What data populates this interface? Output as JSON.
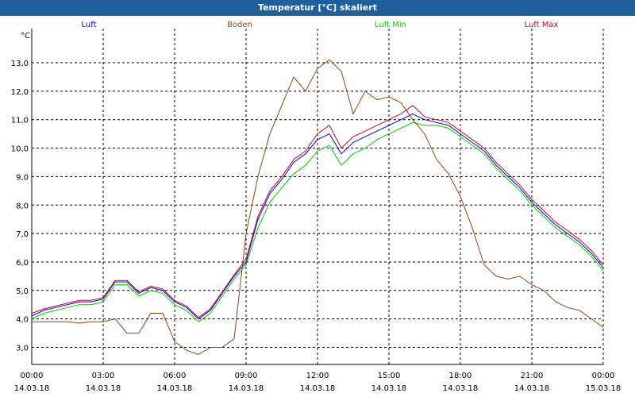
{
  "window": {
    "title": "Temperatur [°C] skaliert"
  },
  "chart_data": {
    "type": "line",
    "title": "Temperatur [°C] skaliert",
    "ylabel": "°C",
    "ylim": [
      2.4,
      14.2
    ],
    "yticks": [
      3.0,
      4.0,
      5.0,
      6.0,
      7.0,
      8.0,
      9.0,
      10.0,
      11.0,
      12.0,
      13.0
    ],
    "ytick_labels": [
      "3,0",
      "4,0",
      "5,0",
      "6,0",
      "7,0",
      "8,0",
      "9,0",
      "10,0",
      "11,0",
      "12,0",
      "13,0"
    ],
    "xlim": [
      0,
      24
    ],
    "xticks": [
      0,
      3,
      6,
      9,
      12,
      15,
      18,
      21,
      24
    ],
    "xtick_time_labels": [
      "00:00",
      "03:00",
      "06:00",
      "09:00",
      "12:00",
      "15:00",
      "18:00",
      "21:00",
      "00:00"
    ],
    "xtick_date_labels": [
      "14.03.18",
      "14.03.18",
      "14.03.18",
      "14.03.18",
      "14.03.18",
      "14.03.18",
      "14.03.18",
      "14.03.18",
      "15.03.18"
    ],
    "grid": true,
    "legend_position": "top",
    "series": [
      {
        "name": "Luft",
        "color": "#0000cc",
        "x": [
          0,
          0.5,
          1,
          1.5,
          2,
          2.5,
          3,
          3.5,
          4,
          4.5,
          5,
          5.5,
          6,
          6.5,
          7,
          7.5,
          8,
          8.5,
          9,
          9.5,
          10,
          10.5,
          11,
          11.5,
          12,
          12.5,
          13,
          13.5,
          14,
          14.5,
          15,
          15.5,
          16,
          16.5,
          17,
          17.5,
          18,
          18.5,
          19,
          19.5,
          20,
          20.5,
          21,
          21.5,
          22,
          22.5,
          23,
          23.5,
          24
        ],
        "y": [
          4.1,
          4.3,
          4.4,
          4.5,
          4.6,
          4.6,
          4.7,
          5.3,
          5.3,
          4.9,
          5.1,
          5.0,
          4.6,
          4.4,
          4.0,
          4.3,
          4.9,
          5.5,
          6.0,
          7.5,
          8.4,
          8.9,
          9.5,
          9.8,
          10.3,
          10.5,
          9.8,
          10.2,
          10.4,
          10.6,
          10.8,
          11.0,
          11.2,
          11.0,
          10.9,
          10.8,
          10.5,
          10.2,
          9.9,
          9.4,
          9.0,
          8.6,
          8.1,
          7.7,
          7.3,
          7.0,
          6.7,
          6.3,
          5.8
        ]
      },
      {
        "name": "Boden",
        "color": "#8b4513",
        "x": [
          0,
          0.5,
          1,
          1.5,
          2,
          2.5,
          3,
          3.5,
          4,
          4.5,
          5,
          5.5,
          6,
          6.5,
          7,
          7.5,
          8,
          8.5,
          9,
          9.5,
          10,
          10.5,
          11,
          11.5,
          12,
          12.5,
          13,
          13.5,
          14,
          14.5,
          15,
          15.5,
          16,
          16.5,
          17,
          17.5,
          18,
          18.5,
          19,
          19.5,
          20,
          20.5,
          21,
          21.5,
          22,
          22.5,
          23,
          23.5,
          24
        ],
        "y": [
          3.9,
          3.9,
          3.9,
          3.9,
          3.85,
          3.9,
          3.9,
          4.0,
          3.5,
          3.5,
          4.2,
          4.2,
          3.2,
          2.9,
          2.75,
          3.0,
          3.0,
          3.3,
          7.0,
          9.0,
          10.5,
          11.5,
          12.5,
          12.0,
          12.8,
          13.1,
          12.7,
          11.2,
          12.0,
          11.7,
          11.8,
          11.6,
          11.0,
          10.5,
          9.6,
          9.1,
          8.3,
          7.2,
          5.9,
          5.5,
          5.4,
          5.5,
          5.2,
          5.0,
          4.6,
          4.4,
          4.3,
          4.0,
          3.7
        ]
      },
      {
        "name": "Luft Min",
        "color": "#00cc00",
        "x": [
          0,
          0.5,
          1,
          1.5,
          2,
          2.5,
          3,
          3.5,
          4,
          4.5,
          5,
          5.5,
          6,
          6.5,
          7,
          7.5,
          8,
          8.5,
          9,
          9.5,
          10,
          10.5,
          11,
          11.5,
          12,
          12.5,
          13,
          13.5,
          14,
          14.5,
          15,
          15.5,
          16,
          16.5,
          17,
          17.5,
          18,
          18.5,
          19,
          19.5,
          20,
          20.5,
          21,
          21.5,
          22,
          22.5,
          23,
          23.5,
          24
        ],
        "y": [
          4.0,
          4.2,
          4.3,
          4.4,
          4.5,
          4.5,
          4.6,
          5.2,
          5.2,
          4.8,
          5.0,
          4.9,
          4.5,
          4.3,
          3.9,
          4.2,
          4.8,
          5.4,
          5.9,
          7.2,
          8.1,
          8.6,
          9.1,
          9.4,
          9.9,
          10.1,
          9.4,
          9.8,
          10.0,
          10.3,
          10.5,
          10.7,
          10.9,
          10.8,
          10.8,
          10.7,
          10.4,
          10.1,
          9.8,
          9.3,
          8.9,
          8.5,
          8.0,
          7.6,
          7.2,
          6.9,
          6.6,
          6.2,
          5.7
        ]
      },
      {
        "name": "Luft Max",
        "color": "#cc0033",
        "x": [
          0,
          0.5,
          1,
          1.5,
          2,
          2.5,
          3,
          3.5,
          4,
          4.5,
          5,
          5.5,
          6,
          6.5,
          7,
          7.5,
          8,
          8.5,
          9,
          9.5,
          10,
          10.5,
          11,
          11.5,
          12,
          12.5,
          13,
          13.5,
          14,
          14.5,
          15,
          15.5,
          16,
          16.5,
          17,
          17.5,
          18,
          18.5,
          19,
          19.5,
          20,
          20.5,
          21,
          21.5,
          22,
          22.5,
          23,
          23.5,
          24
        ],
        "y": [
          4.2,
          4.35,
          4.45,
          4.55,
          4.65,
          4.65,
          4.75,
          5.35,
          5.35,
          4.95,
          5.15,
          5.05,
          4.65,
          4.45,
          4.05,
          4.35,
          4.95,
          5.55,
          6.1,
          7.6,
          8.5,
          9.0,
          9.6,
          9.9,
          10.5,
          10.8,
          10.0,
          10.4,
          10.6,
          10.8,
          11.0,
          11.2,
          11.5,
          11.1,
          11.0,
          10.9,
          10.6,
          10.3,
          10.0,
          9.5,
          9.1,
          8.7,
          8.2,
          7.8,
          7.4,
          7.1,
          6.8,
          6.4,
          5.9
        ]
      }
    ]
  }
}
